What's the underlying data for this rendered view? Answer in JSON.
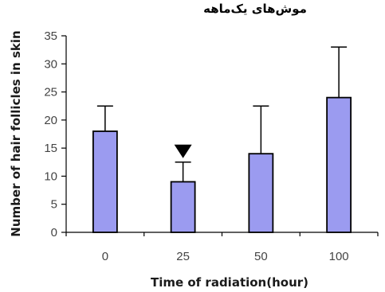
{
  "chart_data": {
    "type": "bar",
    "title": "موش‌های یک‌ماهه",
    "xlabel": "Time of radiation(hour)",
    "ylabel": "Number of hair follicles in skin",
    "categories": [
      "0",
      "25",
      "50",
      "100"
    ],
    "series": [
      {
        "values": [
          18,
          9,
          14,
          24
        ],
        "error_upper": [
          22.5,
          12.5,
          22.5,
          33
        ]
      }
    ],
    "ylim": [
      0,
      35
    ],
    "yticks": [
      "0",
      "5",
      "10",
      "15",
      "20",
      "25",
      "30",
      "35"
    ],
    "grid": false,
    "annotations": [
      {
        "category": "25",
        "marker": "down-triangle"
      }
    ],
    "colors": {
      "bar_fill": "#9b9bf0",
      "bar_edge": "#000000",
      "axis": "#000000"
    }
  }
}
